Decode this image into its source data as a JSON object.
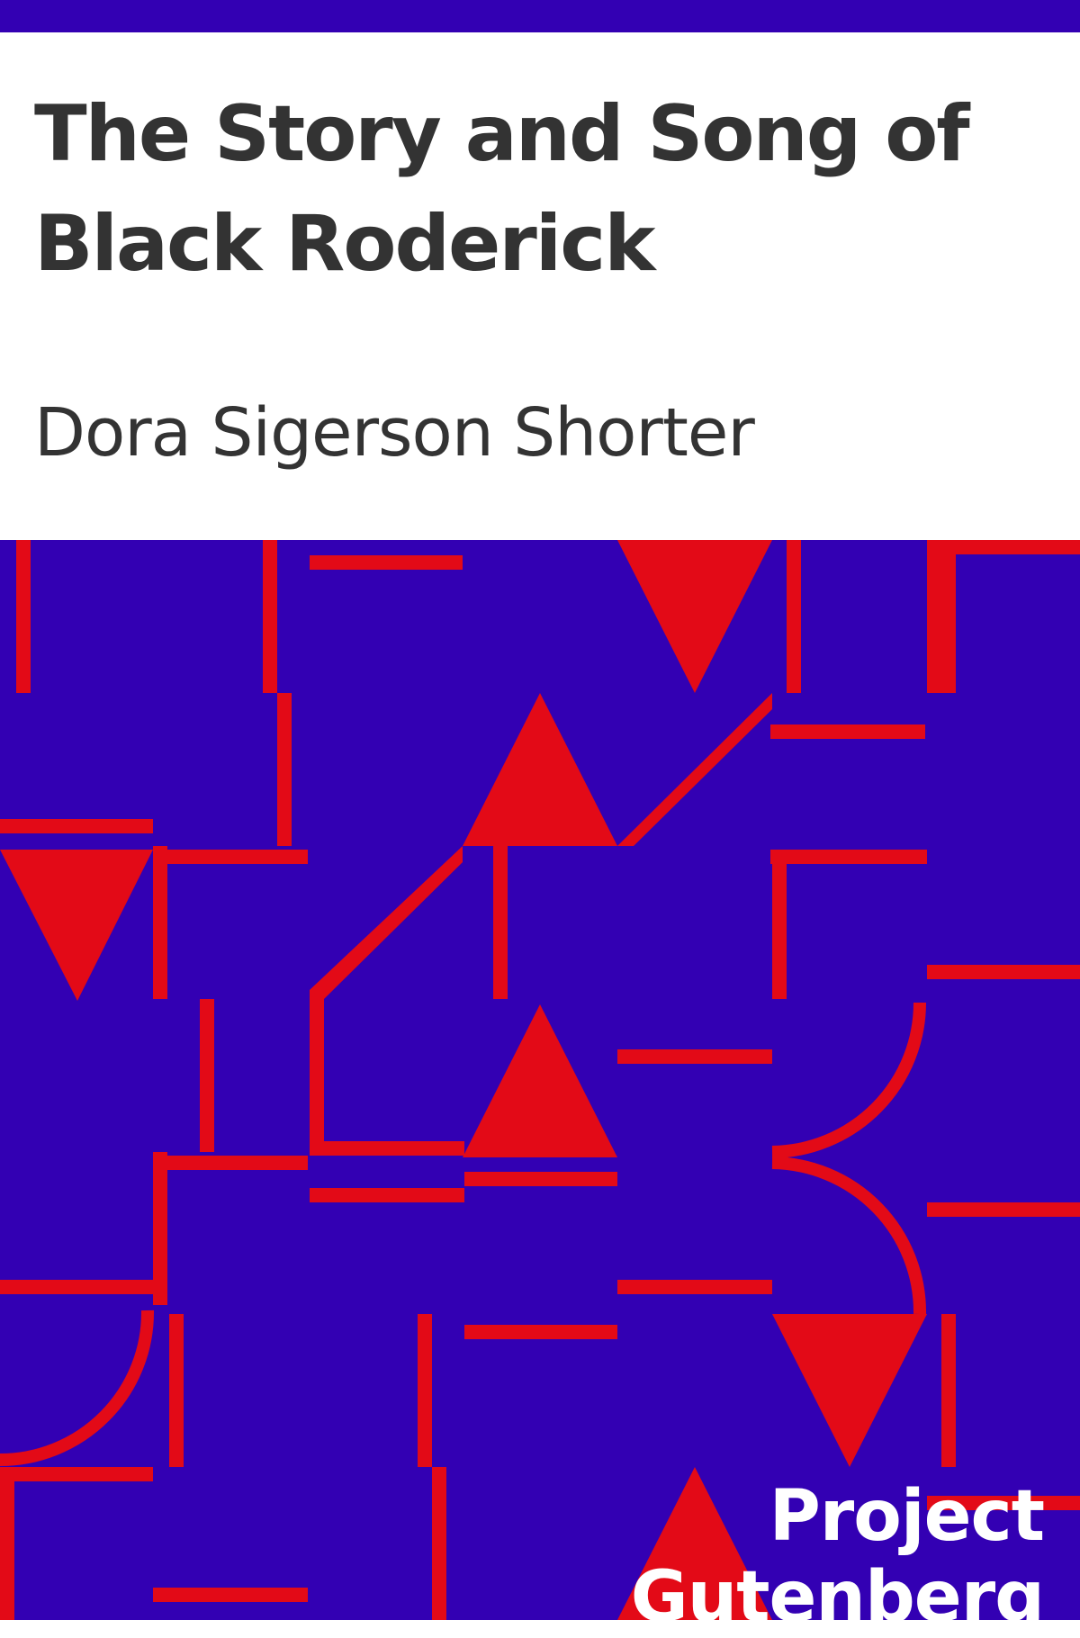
{
  "cover": {
    "title": "The Story and Song of Black Roderick",
    "author": "Dora Sigerson Shorter",
    "publisher_logo_text": "Project Gutenberg"
  },
  "colors": {
    "background_pattern": "#3300b3",
    "pattern_shapes": "#e30a17",
    "top_bar": "#3300b3",
    "title_text": "#333333",
    "logo_text": "#ffffff"
  }
}
